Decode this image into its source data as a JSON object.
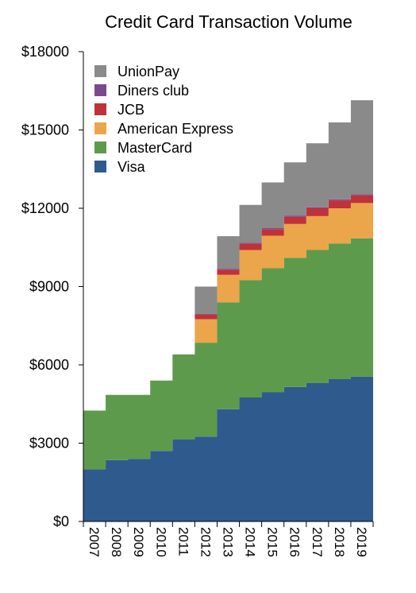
{
  "chart_data": {
    "type": "area",
    "title": "Credit Card Transaction Volume",
    "xlabel": "",
    "ylabel": "",
    "ylim": [
      0,
      18000
    ],
    "yticks": [
      0,
      3000,
      6000,
      9000,
      12000,
      15000,
      18000
    ],
    "ytick_labels": [
      "$0",
      "$3000",
      "$6000",
      "$9000",
      "$12000",
      "$15000",
      "$18000"
    ],
    "categories": [
      "2007",
      "2008",
      "2009",
      "2010",
      "2011",
      "2012",
      "2013",
      "2014",
      "2015",
      "2016",
      "2017",
      "2018",
      "2019"
    ],
    "stacked": true,
    "step": true,
    "grid": false,
    "legend_position": "top-left",
    "series": [
      {
        "name": "Visa",
        "color": "#2f5a8e",
        "values": [
          2000,
          2350,
          2400,
          2700,
          3150,
          3250,
          4300,
          4750,
          4950,
          5150,
          5300,
          5450,
          5550
        ]
      },
      {
        "name": "MasterCard",
        "color": "#5e9a4c",
        "values": [
          2250,
          2500,
          2450,
          2700,
          3250,
          3600,
          4100,
          4500,
          4750,
          4950,
          5100,
          5200,
          5300
        ]
      },
      {
        "name": "American Express",
        "color": "#eba54a",
        "values": [
          0,
          0,
          0,
          0,
          0,
          900,
          1050,
          1150,
          1250,
          1300,
          1300,
          1350,
          1350
        ]
      },
      {
        "name": "JCB",
        "color": "#c1313a",
        "values": [
          0,
          0,
          0,
          0,
          0,
          180,
          200,
          240,
          250,
          270,
          300,
          300,
          300
        ]
      },
      {
        "name": "Diners club",
        "color": "#7b4a8c",
        "values": [
          0,
          0,
          0,
          0,
          0,
          20,
          30,
          40,
          40,
          40,
          40,
          40,
          40
        ]
      },
      {
        "name": "UnionPay",
        "color": "#8a8a8a",
        "values": [
          0,
          0,
          0,
          0,
          0,
          1050,
          1250,
          1450,
          1750,
          2050,
          2450,
          2950,
          3600
        ]
      }
    ]
  }
}
